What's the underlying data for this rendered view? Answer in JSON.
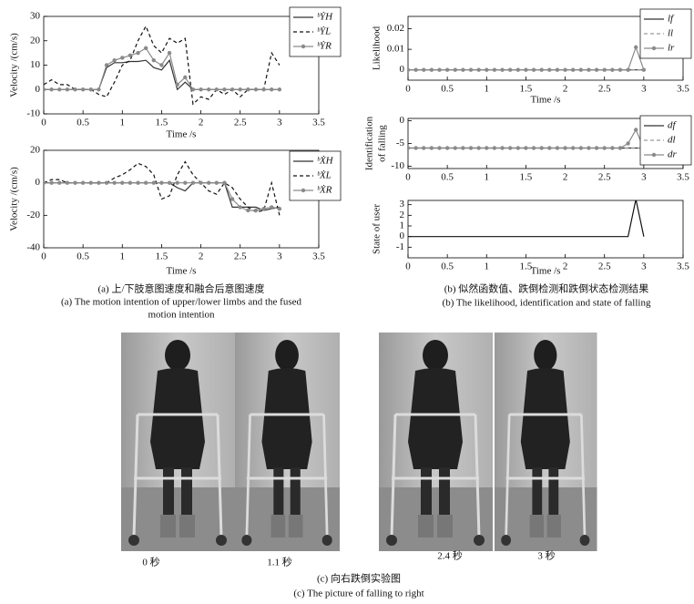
{
  "chart_data": [
    {
      "type": "line",
      "ylabel": "Velocity /(cm/s)",
      "xlabel": "Time /s",
      "xlim": [
        0,
        3.5
      ],
      "xticks": [
        0,
        0.5,
        1,
        1.5,
        2,
        2.5,
        3,
        3.5
      ],
      "ylim": [
        -10,
        30
      ],
      "yticks": [
        -10,
        0,
        10,
        20,
        30
      ],
      "x": [
        0,
        0.1,
        0.2,
        0.3,
        0.4,
        0.5,
        0.6,
        0.7,
        0.8,
        0.9,
        1,
        1.1,
        1.2,
        1.3,
        1.4,
        1.5,
        1.6,
        1.7,
        1.8,
        1.9,
        2,
        2.1,
        2.2,
        2.3,
        2.4,
        2.5,
        2.6,
        2.7,
        2.8,
        2.9,
        3
      ],
      "series": [
        {
          "name": "ᵇẎH",
          "color": "#333333",
          "style": "solid",
          "values": [
            0,
            0,
            0,
            0,
            0,
            0,
            0,
            0,
            9,
            11,
            11,
            11.5,
            11.5,
            12,
            9,
            8,
            12,
            0,
            3,
            0,
            0,
            0,
            0,
            0,
            0,
            0,
            0,
            0,
            0,
            0,
            0
          ]
        },
        {
          "name": "ᵇẎL",
          "color": "#111111",
          "style": "dashed",
          "values": [
            2,
            4,
            2,
            2,
            0,
            0,
            0,
            -2,
            -3,
            3,
            10,
            12,
            20,
            26,
            18,
            15,
            21,
            19,
            21,
            -6,
            -3,
            -4,
            0,
            -2,
            0,
            -3,
            0,
            0,
            0,
            15,
            10
          ]
        },
        {
          "name": "ᵇẎR",
          "color": "#8a8a8a",
          "style": "markers",
          "values": [
            0,
            0,
            0,
            0,
            0,
            0,
            0,
            0,
            10,
            12,
            13,
            14,
            15,
            17,
            12,
            10,
            15,
            2,
            5,
            0,
            0,
            0,
            0,
            0,
            0,
            0,
            0,
            0,
            0,
            0,
            0
          ]
        }
      ]
    },
    {
      "type": "line",
      "ylabel": "Velocity /(cm/s)",
      "xlabel": "Time /s",
      "xlim": [
        0,
        3.5
      ],
      "xticks": [
        0,
        0.5,
        1,
        1.5,
        2,
        2.5,
        3,
        3.5
      ],
      "ylim": [
        -40,
        20
      ],
      "yticks": [
        -40,
        -20,
        0,
        20
      ],
      "x": [
        0,
        0.1,
        0.2,
        0.3,
        0.4,
        0.5,
        0.6,
        0.7,
        0.8,
        0.9,
        1,
        1.1,
        1.2,
        1.3,
        1.4,
        1.5,
        1.6,
        1.7,
        1.8,
        1.9,
        2,
        2.1,
        2.2,
        2.3,
        2.4,
        2.5,
        2.6,
        2.7,
        2.8,
        2.9,
        3
      ],
      "series": [
        {
          "name": "ᵇẊH",
          "color": "#333333",
          "style": "solid",
          "values": [
            0,
            0,
            0,
            0,
            0,
            0,
            0,
            0,
            0,
            0,
            0,
            0,
            0,
            0,
            0,
            0,
            0,
            -3,
            -5,
            0,
            0,
            0,
            0,
            0,
            -15,
            -15,
            -15,
            -15,
            -17,
            -16,
            -15
          ]
        },
        {
          "name": "ᵇẊL",
          "color": "#111111",
          "style": "dashed",
          "values": [
            0,
            2,
            2,
            0,
            0,
            0,
            0,
            0,
            0,
            3,
            5,
            8,
            12,
            10,
            5,
            -10,
            -8,
            5,
            13,
            5,
            0,
            -5,
            -7,
            0,
            -3,
            -10,
            -15,
            -18,
            -17,
            0,
            -20
          ]
        },
        {
          "name": "ᵇẊR",
          "color": "#8a8a8a",
          "style": "markers",
          "values": [
            0,
            0,
            0,
            0,
            0,
            0,
            0,
            0,
            0,
            0,
            0,
            0,
            0,
            0,
            0,
            0,
            0,
            0,
            0,
            0,
            0,
            0,
            0,
            0,
            -10,
            -15,
            -17,
            -17,
            -16,
            -15,
            -16
          ]
        }
      ]
    },
    {
      "type": "line",
      "ylabel": [
        "Likelihood"
      ],
      "xlabel": "Time /s",
      "xlim": [
        0,
        3.5
      ],
      "xticks": [
        0,
        0.5,
        1,
        1.5,
        2,
        2.5,
        3,
        3.5
      ],
      "ylim": [
        -0.005,
        0.026
      ],
      "yticks": [
        0,
        0.01,
        0.02
      ],
      "x": [
        0,
        0.1,
        0.2,
        0.3,
        0.4,
        0.5,
        0.6,
        0.7,
        0.8,
        0.9,
        1,
        1.1,
        1.2,
        1.3,
        1.4,
        1.5,
        1.6,
        1.7,
        1.8,
        1.9,
        2,
        2.1,
        2.2,
        2.3,
        2.4,
        2.5,
        2.6,
        2.7,
        2.8,
        2.9,
        3
      ],
      "series": [
        {
          "name": "lf",
          "color": "#333333",
          "style": "solid",
          "values": [
            0,
            0,
            0,
            0,
            0,
            0,
            0,
            0,
            0,
            0,
            0,
            0,
            0,
            0,
            0,
            0,
            0,
            0,
            0,
            0,
            0,
            0,
            0,
            0,
            0,
            0,
            0,
            0,
            0,
            0,
            0
          ]
        },
        {
          "name": "ll",
          "color": "#999999",
          "style": "dashed",
          "values": [
            0,
            0,
            0,
            0,
            0,
            0,
            0,
            0,
            0,
            0,
            0,
            0,
            0,
            0,
            0,
            0,
            0,
            0,
            0,
            0,
            0,
            0,
            0,
            0,
            0,
            0,
            0,
            0,
            0,
            0,
            0
          ]
        },
        {
          "name": "lr",
          "color": "#8a8a8a",
          "style": "markers",
          "values": [
            0,
            0,
            0,
            0,
            0,
            0,
            0,
            0,
            0,
            0,
            0,
            0,
            0,
            0,
            0,
            0,
            0,
            0,
            0,
            0,
            0,
            0,
            0,
            0,
            0,
            0,
            0,
            0,
            0,
            0.011,
            0
          ]
        }
      ]
    },
    {
      "type": "line",
      "ylabel": [
        "Identification",
        "of falling"
      ],
      "xlim": [
        0,
        3.5
      ],
      "xticks": [
        0,
        0.5,
        1,
        1.5,
        2,
        2.5,
        3,
        3.5
      ],
      "ylim": [
        -10.5,
        0.5
      ],
      "yticks": [
        -10,
        -5,
        0
      ],
      "x": [
        0,
        0.1,
        0.2,
        0.3,
        0.4,
        0.5,
        0.6,
        0.7,
        0.8,
        0.9,
        1,
        1.1,
        1.2,
        1.3,
        1.4,
        1.5,
        1.6,
        1.7,
        1.8,
        1.9,
        2,
        2.1,
        2.2,
        2.3,
        2.4,
        2.5,
        2.6,
        2.7,
        2.8,
        2.9,
        3
      ],
      "series": [
        {
          "name": "df",
          "color": "#333333",
          "style": "solid",
          "values": [
            -6,
            -6,
            -6,
            -6,
            -6,
            -6,
            -6,
            -6,
            -6,
            -6,
            -6,
            -6,
            -6,
            -6,
            -6,
            -6,
            -6,
            -6,
            -6,
            -6,
            -6,
            -6,
            -6,
            -6,
            -6,
            -6,
            -6,
            -6,
            -6,
            -6,
            -6
          ]
        },
        {
          "name": "dl",
          "color": "#999999",
          "style": "dashed",
          "values": [
            -6,
            -6,
            -6,
            -6,
            -6,
            -6,
            -6,
            -6,
            -6,
            -6,
            -6,
            -6,
            -6,
            -6,
            -6,
            -6,
            -6,
            -6,
            -6,
            -6,
            -6,
            -6,
            -6,
            -6,
            -6,
            -6,
            -6,
            -6,
            -6,
            -6,
            -6
          ]
        },
        {
          "name": "dr",
          "color": "#8a8a8a",
          "style": "markers",
          "values": [
            -6,
            -6,
            -6,
            -6,
            -6,
            -6,
            -6,
            -6,
            -6,
            -6,
            -6,
            -6,
            -6,
            -6,
            -6,
            -6,
            -6,
            -6,
            -6,
            -6,
            -6,
            -6,
            -6,
            -6,
            -6,
            -6,
            -6,
            -6,
            -5,
            -2,
            -6
          ]
        }
      ]
    },
    {
      "type": "line",
      "ylabel": [
        "State of user"
      ],
      "xlabel": "Time /s",
      "xlim": [
        0,
        3.5
      ],
      "xticks": [
        0,
        0.5,
        1,
        1.5,
        2,
        2.5,
        3,
        3.5
      ],
      "ylim": [
        -2,
        3.4
      ],
      "yticks": [
        -1,
        0,
        1,
        2,
        3
      ],
      "x": [
        0,
        0.1,
        0.2,
        0.3,
        0.4,
        0.5,
        0.6,
        0.7,
        0.8,
        0.9,
        1,
        1.1,
        1.2,
        1.3,
        1.4,
        1.5,
        1.6,
        1.7,
        1.8,
        1.9,
        2,
        2.1,
        2.2,
        2.3,
        2.4,
        2.5,
        2.6,
        2.7,
        2.8,
        2.9,
        3
      ],
      "series": [
        {
          "color": "#111111",
          "style": "solid",
          "values": [
            0,
            0,
            0,
            0,
            0,
            0,
            0,
            0,
            0,
            0,
            0,
            0,
            0,
            0,
            0,
            0,
            0,
            0,
            0,
            0,
            0,
            0,
            0,
            0,
            0,
            0,
            0,
            0,
            0,
            3.5,
            0
          ]
        }
      ]
    }
  ],
  "captions": {
    "a": [
      "(a) 上/下肢意图速度和融合后意图速度",
      "(a) The motion intention of upper/lower limbs and the fused",
      "motion intention"
    ],
    "b": [
      "(b) 似然函数值、跌倒检测和跌倒状态检测结果",
      "(b) The likelihood, identification and state of falling"
    ],
    "c": [
      "(c) 向右跌倒实验图",
      "(c) The picture of falling to right"
    ]
  },
  "photos": {
    "labels": [
      "0 秒",
      "1.1 秒",
      "2.4 秒",
      "3 秒"
    ]
  }
}
